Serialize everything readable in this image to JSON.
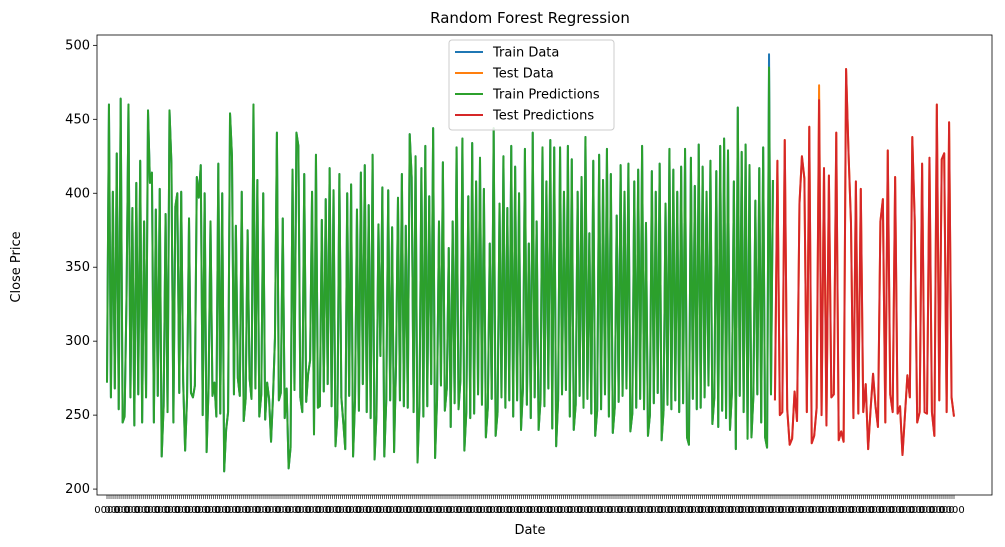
{
  "chart_data": {
    "type": "line",
    "title": "Random Forest Regression",
    "xlabel": "Date",
    "ylabel": "Close Price",
    "ylim": [
      196,
      507
    ],
    "yticks": [
      200,
      250,
      300,
      350,
      400,
      450,
      500
    ],
    "x_tick_label": "0000",
    "legend_position": "top-center",
    "series": [
      {
        "name": "Train Data",
        "color": "#1f77b4",
        "x_range": [
          0,
          331
        ],
        "values": [
          272,
          460,
          262,
          401,
          268,
          427,
          254,
          464,
          245,
          249,
          330,
          460,
          262,
          390,
          243,
          407,
          264,
          422,
          245,
          381,
          262,
          456,
          407,
          414,
          245,
          389,
          263,
          403,
          222,
          256,
          386,
          252,
          456,
          420,
          245,
          391,
          400,
          265,
          401,
          273,
          226,
          262,
          383,
          265,
          262,
          270,
          411,
          397,
          419,
          250,
          400,
          225,
          268,
          381,
          263,
          272,
          249,
          420,
          251,
          400,
          212,
          240,
          252,
          454,
          425,
          264,
          378,
          275,
          263,
          401,
          246,
          261,
          375,
          275,
          261,
          460,
          268,
          409,
          249,
          264,
          400,
          247,
          272,
          261,
          232,
          262,
          302,
          441,
          260,
          265,
          383,
          248,
          268,
          214,
          228,
          416,
          267,
          441,
          432,
          262,
          252,
          413,
          259,
          278,
          287,
          401,
          237,
          426,
          255,
          256,
          382,
          266,
          396,
          271,
          417,
          256,
          402,
          229,
          250,
          413,
          262,
          245,
          227,
          400,
          263,
          406,
          222,
          260,
          389,
          253,
          414,
          271,
          419,
          252,
          392,
          248,
          426,
          220,
          250,
          379,
          290,
          404,
          222,
          260,
          402,
          260,
          377,
          225,
          284,
          397,
          260,
          413,
          256,
          378,
          255,
          440,
          411,
          252,
          425,
          218,
          256,
          417,
          249,
          432,
          256,
          398,
          271,
          444,
          221,
          260,
          381,
          270,
          421,
          253,
          268,
          363,
          242,
          381,
          258,
          431,
          254,
          274,
          437,
          226,
          252,
          398,
          248,
          434,
          251,
          408,
          264,
          424,
          257,
          403,
          235,
          255,
          366,
          261,
          444,
          236,
          252,
          393,
          262,
          425,
          255,
          390,
          260,
          432,
          249,
          418,
          260,
          400,
          240,
          268,
          430,
          257,
          366,
          248,
          441,
          262,
          381,
          240,
          260,
          431,
          256,
          408,
          268,
          436,
          241,
          431,
          229,
          260,
          431,
          264,
          401,
          267,
          432,
          249,
          423,
          240,
          257,
          401,
          263,
          411,
          255,
          438,
          261,
          373,
          251,
          422,
          236,
          253,
          426,
          254,
          409,
          264,
          430,
          249,
          413,
          238,
          255,
          385,
          259,
          419,
          263,
          401,
          268,
          420,
          239,
          251,
          408,
          255,
          416,
          261,
          432,
          254,
          380,
          236,
          250,
          415,
          258,
          401,
          265,
          420,
          233,
          253,
          393,
          257,
          430,
          254,
          416,
          260,
          401,
          252,
          418,
          258,
          430,
          235,
          230,
          424,
          261,
          405,
          254,
          433,
          255,
          418,
          262,
          401,
          270,
          422,
          244,
          262,
          415,
          242,
          432,
          253,
          437,
          248,
          429,
          240,
          265,
          408,
          227,
          458,
          263,
          428,
          252,
          433,
          234,
          419,
          235,
          263,
          395,
          264,
          417,
          245,
          431,
          235,
          228,
          494,
          264,
          409
        ]
      },
      {
        "name": "Test Data",
        "color": "#ff7f0e",
        "x_range": [
          332,
          421
        ],
        "values": [
          260,
          422,
          250,
          252,
          436,
          254,
          230,
          234,
          266,
          246,
          393,
          425,
          410,
          252,
          445,
          231,
          236,
          255,
          473,
          250,
          417,
          243,
          412,
          262,
          264,
          441,
          233,
          239,
          232,
          484,
          427,
          380,
          248,
          408,
          251,
          403,
          252,
          271,
          227,
          254,
          278,
          256,
          242,
          381,
          396,
          245,
          429,
          264,
          252,
          411,
          251,
          256,
          223,
          250,
          277,
          262,
          438,
          381,
          245,
          252,
          420,
          252,
          251,
          424,
          252,
          236,
          460,
          260,
          423,
          427,
          252,
          448,
          262,
          249
        ]
      },
      {
        "name": "Train Predictions",
        "color": "#2ca02c",
        "x_range": [
          0,
          331
        ],
        "values": [
          272,
          460,
          262,
          401,
          268,
          427,
          254,
          464,
          245,
          249,
          330,
          460,
          262,
          390,
          243,
          407,
          264,
          422,
          245,
          381,
          262,
          456,
          407,
          414,
          245,
          389,
          263,
          403,
          222,
          256,
          386,
          252,
          456,
          420,
          245,
          391,
          400,
          265,
          401,
          273,
          226,
          262,
          383,
          265,
          262,
          270,
          411,
          397,
          419,
          250,
          400,
          225,
          268,
          381,
          263,
          272,
          249,
          420,
          251,
          400,
          212,
          240,
          252,
          454,
          425,
          264,
          378,
          275,
          263,
          401,
          246,
          261,
          375,
          275,
          261,
          460,
          268,
          409,
          249,
          264,
          400,
          247,
          272,
          261,
          232,
          262,
          302,
          441,
          260,
          265,
          383,
          248,
          268,
          214,
          228,
          416,
          267,
          441,
          432,
          262,
          252,
          413,
          259,
          278,
          287,
          401,
          237,
          426,
          255,
          256,
          382,
          266,
          396,
          271,
          417,
          256,
          402,
          229,
          250,
          413,
          262,
          245,
          227,
          400,
          263,
          406,
          222,
          260,
          389,
          253,
          414,
          271,
          419,
          252,
          392,
          248,
          426,
          220,
          250,
          379,
          290,
          404,
          222,
          260,
          402,
          260,
          377,
          225,
          284,
          397,
          260,
          413,
          256,
          378,
          255,
          440,
          411,
          252,
          425,
          218,
          256,
          417,
          249,
          432,
          256,
          398,
          271,
          444,
          221,
          260,
          381,
          270,
          421,
          253,
          268,
          363,
          242,
          381,
          258,
          431,
          254,
          274,
          437,
          226,
          252,
          398,
          248,
          434,
          251,
          408,
          264,
          424,
          257,
          403,
          235,
          255,
          366,
          261,
          444,
          236,
          252,
          393,
          262,
          425,
          255,
          390,
          260,
          432,
          249,
          418,
          260,
          400,
          240,
          268,
          430,
          257,
          366,
          248,
          441,
          262,
          381,
          240,
          260,
          431,
          256,
          408,
          268,
          436,
          241,
          431,
          229,
          260,
          431,
          264,
          401,
          267,
          432,
          249,
          423,
          240,
          257,
          401,
          263,
          411,
          255,
          438,
          261,
          373,
          251,
          422,
          236,
          253,
          426,
          254,
          409,
          264,
          430,
          249,
          413,
          238,
          255,
          385,
          259,
          419,
          263,
          401,
          268,
          420,
          239,
          251,
          408,
          255,
          416,
          261,
          432,
          254,
          380,
          236,
          250,
          415,
          258,
          401,
          265,
          420,
          233,
          253,
          393,
          257,
          430,
          254,
          416,
          260,
          401,
          252,
          418,
          258,
          430,
          235,
          230,
          424,
          261,
          405,
          254,
          433,
          255,
          418,
          262,
          401,
          270,
          422,
          244,
          262,
          415,
          242,
          432,
          253,
          437,
          248,
          429,
          240,
          265,
          408,
          227,
          458,
          263,
          428,
          252,
          433,
          234,
          419,
          235,
          263,
          395,
          264,
          417,
          245,
          431,
          235,
          228,
          485,
          264,
          409
        ]
      },
      {
        "name": "Test Predictions",
        "color": "#d62728",
        "x_range": [
          332,
          421
        ],
        "values": [
          260,
          422,
          250,
          252,
          436,
          254,
          230,
          234,
          266,
          246,
          393,
          425,
          410,
          252,
          445,
          231,
          236,
          255,
          463,
          250,
          417,
          243,
          412,
          262,
          264,
          441,
          233,
          239,
          232,
          484,
          427,
          380,
          248,
          408,
          251,
          403,
          252,
          271,
          227,
          254,
          278,
          256,
          242,
          381,
          396,
          245,
          429,
          264,
          252,
          411,
          251,
          256,
          223,
          250,
          277,
          262,
          438,
          381,
          245,
          252,
          420,
          252,
          251,
          424,
          252,
          236,
          460,
          260,
          423,
          427,
          252,
          448,
          262,
          249
        ]
      }
    ]
  }
}
